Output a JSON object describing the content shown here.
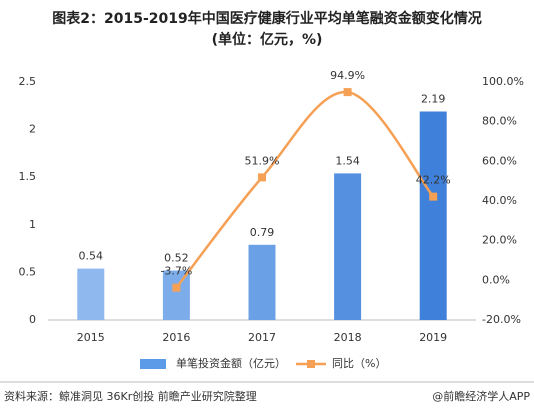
{
  "chart_data": {
    "type": "bar+line",
    "title": "图表2：2015-2019年中国医疗健康行业平均单笔融资金额变化情况",
    "subtitle": "(单位：亿元，%)",
    "categories": [
      "2015",
      "2016",
      "2017",
      "2018",
      "2019"
    ],
    "series": [
      {
        "name": "单笔投资金额（亿元）",
        "type": "bar",
        "color": "#5b9be8",
        "colors": [
          "#8fb8ee",
          "#7dacea",
          "#6aa0e6",
          "#5590e0",
          "#3f80da"
        ],
        "values": [
          0.54,
          0.52,
          0.79,
          1.54,
          2.19
        ]
      },
      {
        "name": "同比（%）",
        "type": "line",
        "axis": "y2",
        "color": "#f5a055",
        "values": [
          null,
          -3.7,
          51.9,
          94.9,
          42.2
        ],
        "value_labels": [
          null,
          "-3.7%",
          "51.9%",
          "94.9%",
          "42.2%"
        ]
      }
    ],
    "ylim": [
      0,
      2.5
    ],
    "yticks": [
      0,
      0.5,
      1,
      1.5,
      2,
      2.5
    ],
    "y2lim": [
      -20,
      100
    ],
    "y2ticks": [
      {
        "value": -20,
        "label": "-20.0%"
      },
      {
        "value": 0,
        "label": "0.0%"
      },
      {
        "value": 20,
        "label": "20.0%"
      },
      {
        "value": 40,
        "label": "40.0%"
      },
      {
        "value": 60,
        "label": "60.0%"
      },
      {
        "value": 80,
        "label": "80.0%"
      },
      {
        "value": 100,
        "label": "100.0%"
      }
    ],
    "grid": false,
    "legend": "bottom",
    "source": "资料来源：鲸准洞见 36Kr创投 前瞻产业研究院整理",
    "footer": "@前瞻经济学人APP"
  }
}
